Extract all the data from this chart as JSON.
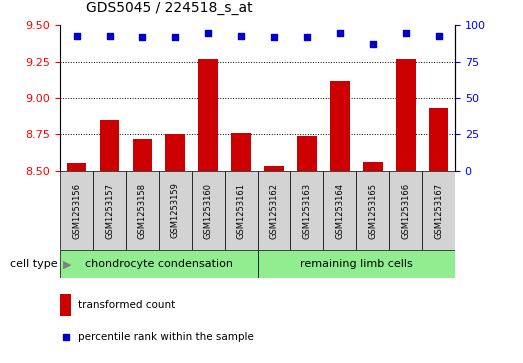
{
  "title": "GDS5045 / 224518_s_at",
  "samples": [
    "GSM1253156",
    "GSM1253157",
    "GSM1253158",
    "GSM1253159",
    "GSM1253160",
    "GSM1253161",
    "GSM1253162",
    "GSM1253163",
    "GSM1253164",
    "GSM1253165",
    "GSM1253166",
    "GSM1253167"
  ],
  "transformed_counts": [
    8.55,
    8.85,
    8.72,
    8.75,
    9.27,
    8.76,
    8.53,
    8.74,
    9.12,
    8.56,
    9.27,
    8.93
  ],
  "percentile_ranks": [
    93,
    93,
    92,
    92,
    95,
    93,
    92,
    92,
    95,
    87,
    95,
    93
  ],
  "ylim_left": [
    8.5,
    9.5
  ],
  "ylim_right": [
    0,
    100
  ],
  "yticks_left": [
    8.5,
    8.75,
    9.0,
    9.25,
    9.5
  ],
  "yticks_right": [
    0,
    25,
    50,
    75,
    100
  ],
  "bar_color": "#cc0000",
  "dot_color": "#0000cc",
  "group1_label": "chondrocyte condensation",
  "group2_label": "remaining limb cells",
  "group1_color": "#90ee90",
  "group2_color": "#90ee90",
  "cell_type_label": "cell type",
  "legend_bar_label": "transformed count",
  "legend_dot_label": "percentile rank within the sample",
  "n_group1": 6,
  "n_group2": 6,
  "sample_box_color": "#d3d3d3",
  "plot_bg": "#ffffff",
  "border_color": "#000000"
}
